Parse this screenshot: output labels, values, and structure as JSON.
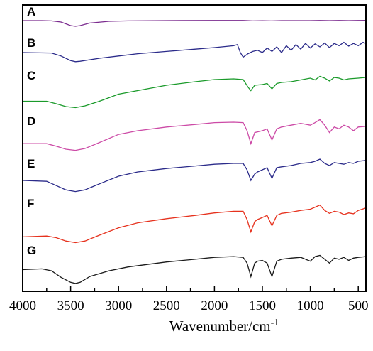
{
  "chart_data": {
    "type": "line",
    "title": "",
    "xlabel": "Wavenumber/cm",
    "xlabel_superscript": "-1",
    "ylabel": "",
    "xlim": [
      4000,
      420
    ],
    "x_reversed": true,
    "x_ticks": [
      4000,
      3500,
      3000,
      2500,
      2000,
      1500,
      1000,
      500
    ],
    "y_ticks": false,
    "grid": false,
    "legend": "none",
    "series": [
      {
        "name": "A",
        "color": "#7a2a8e",
        "points": [
          [
            4000,
            0.95
          ],
          [
            3800,
            0.95
          ],
          [
            3700,
            0.93
          ],
          [
            3600,
            0.85
          ],
          [
            3500,
            0.6
          ],
          [
            3450,
            0.55
          ],
          [
            3400,
            0.6
          ],
          [
            3300,
            0.78
          ],
          [
            3100,
            0.9
          ],
          [
            2900,
            0.93
          ],
          [
            2500,
            0.95
          ],
          [
            2000,
            0.96
          ],
          [
            1700,
            0.96
          ],
          [
            1600,
            0.93
          ],
          [
            1500,
            0.94
          ],
          [
            1400,
            0.93
          ],
          [
            1300,
            0.95
          ],
          [
            1000,
            0.95
          ],
          [
            900,
            0.96
          ],
          [
            800,
            0.95
          ],
          [
            700,
            0.96
          ],
          [
            600,
            0.95
          ],
          [
            500,
            0.96
          ],
          [
            420,
            0.97
          ]
        ]
      },
      {
        "name": "B",
        "color": "#2b2b8a",
        "points": [
          [
            4000,
            0.5
          ],
          [
            3700,
            0.48
          ],
          [
            3600,
            0.35
          ],
          [
            3500,
            0.15
          ],
          [
            3450,
            0.1
          ],
          [
            3400,
            0.12
          ],
          [
            3200,
            0.25
          ],
          [
            3000,
            0.35
          ],
          [
            2800,
            0.45
          ],
          [
            2500,
            0.55
          ],
          [
            2200,
            0.65
          ],
          [
            2000,
            0.72
          ],
          [
            1800,
            0.8
          ],
          [
            1760,
            0.85
          ],
          [
            1730,
            0.5
          ],
          [
            1700,
            0.3
          ],
          [
            1650,
            0.45
          ],
          [
            1600,
            0.55
          ],
          [
            1550,
            0.6
          ],
          [
            1500,
            0.5
          ],
          [
            1450,
            0.7
          ],
          [
            1400,
            0.55
          ],
          [
            1350,
            0.75
          ],
          [
            1300,
            0.5
          ],
          [
            1250,
            0.8
          ],
          [
            1200,
            0.6
          ],
          [
            1150,
            0.85
          ],
          [
            1100,
            0.65
          ],
          [
            1050,
            0.9
          ],
          [
            1000,
            0.7
          ],
          [
            950,
            0.88
          ],
          [
            900,
            0.75
          ],
          [
            850,
            0.92
          ],
          [
            800,
            0.72
          ],
          [
            750,
            0.9
          ],
          [
            700,
            0.8
          ],
          [
            650,
            0.95
          ],
          [
            600,
            0.78
          ],
          [
            550,
            0.9
          ],
          [
            500,
            0.8
          ],
          [
            450,
            0.95
          ],
          [
            420,
            0.9
          ]
        ]
      },
      {
        "name": "C",
        "color": "#1a9a2a",
        "points": [
          [
            4000,
            0.15
          ],
          [
            3750,
            0.15
          ],
          [
            3650,
            0.08
          ],
          [
            3550,
            0.0
          ],
          [
            3450,
            -0.03
          ],
          [
            3350,
            0.02
          ],
          [
            3200,
            0.15
          ],
          [
            3000,
            0.35
          ],
          [
            2800,
            0.45
          ],
          [
            2500,
            0.6
          ],
          [
            2200,
            0.7
          ],
          [
            2000,
            0.76
          ],
          [
            1800,
            0.78
          ],
          [
            1700,
            0.76
          ],
          [
            1650,
            0.55
          ],
          [
            1620,
            0.45
          ],
          [
            1580,
            0.6
          ],
          [
            1500,
            0.62
          ],
          [
            1450,
            0.65
          ],
          [
            1400,
            0.5
          ],
          [
            1350,
            0.65
          ],
          [
            1300,
            0.68
          ],
          [
            1200,
            0.7
          ],
          [
            1100,
            0.75
          ],
          [
            1000,
            0.8
          ],
          [
            950,
            0.75
          ],
          [
            900,
            0.85
          ],
          [
            850,
            0.8
          ],
          [
            800,
            0.72
          ],
          [
            750,
            0.82
          ],
          [
            700,
            0.8
          ],
          [
            650,
            0.75
          ],
          [
            600,
            0.78
          ],
          [
            500,
            0.8
          ],
          [
            420,
            0.82
          ]
        ]
      },
      {
        "name": "D",
        "color": "#cc4aa6",
        "points": [
          [
            4000,
            0.15
          ],
          [
            3750,
            0.15
          ],
          [
            3650,
            0.08
          ],
          [
            3550,
            0.0
          ],
          [
            3450,
            -0.03
          ],
          [
            3350,
            0.02
          ],
          [
            3200,
            0.18
          ],
          [
            3000,
            0.4
          ],
          [
            2900,
            0.45
          ],
          [
            2800,
            0.5
          ],
          [
            2500,
            0.6
          ],
          [
            2200,
            0.67
          ],
          [
            2000,
            0.72
          ],
          [
            1800,
            0.73
          ],
          [
            1700,
            0.72
          ],
          [
            1660,
            0.5
          ],
          [
            1620,
            0.15
          ],
          [
            1580,
            0.45
          ],
          [
            1500,
            0.5
          ],
          [
            1450,
            0.55
          ],
          [
            1400,
            0.25
          ],
          [
            1350,
            0.55
          ],
          [
            1300,
            0.6
          ],
          [
            1200,
            0.65
          ],
          [
            1100,
            0.7
          ],
          [
            1000,
            0.65
          ],
          [
            950,
            0.72
          ],
          [
            900,
            0.8
          ],
          [
            850,
            0.65
          ],
          [
            800,
            0.45
          ],
          [
            750,
            0.6
          ],
          [
            700,
            0.55
          ],
          [
            650,
            0.65
          ],
          [
            600,
            0.6
          ],
          [
            550,
            0.5
          ],
          [
            500,
            0.6
          ],
          [
            420,
            0.62
          ]
        ]
      },
      {
        "name": "E",
        "color": "#2b2b8a",
        "points": [
          [
            4000,
            0.3
          ],
          [
            3750,
            0.28
          ],
          [
            3650,
            0.18
          ],
          [
            3550,
            0.08
          ],
          [
            3450,
            0.04
          ],
          [
            3350,
            0.08
          ],
          [
            3200,
            0.22
          ],
          [
            3000,
            0.4
          ],
          [
            2900,
            0.45
          ],
          [
            2800,
            0.5
          ],
          [
            2500,
            0.58
          ],
          [
            2200,
            0.64
          ],
          [
            2000,
            0.68
          ],
          [
            1800,
            0.7
          ],
          [
            1700,
            0.7
          ],
          [
            1660,
            0.55
          ],
          [
            1620,
            0.3
          ],
          [
            1580,
            0.45
          ],
          [
            1550,
            0.5
          ],
          [
            1500,
            0.55
          ],
          [
            1450,
            0.6
          ],
          [
            1400,
            0.35
          ],
          [
            1350,
            0.6
          ],
          [
            1300,
            0.62
          ],
          [
            1200,
            0.65
          ],
          [
            1100,
            0.7
          ],
          [
            1000,
            0.72
          ],
          [
            950,
            0.75
          ],
          [
            900,
            0.8
          ],
          [
            850,
            0.7
          ],
          [
            800,
            0.65
          ],
          [
            750,
            0.72
          ],
          [
            700,
            0.7
          ],
          [
            650,
            0.68
          ],
          [
            600,
            0.72
          ],
          [
            550,
            0.7
          ],
          [
            500,
            0.75
          ],
          [
            420,
            0.77
          ]
        ]
      },
      {
        "name": "F",
        "color": "#e6321e",
        "points": [
          [
            4000,
            0.08
          ],
          [
            3750,
            0.1
          ],
          [
            3650,
            0.06
          ],
          [
            3550,
            -0.02
          ],
          [
            3450,
            -0.06
          ],
          [
            3350,
            -0.02
          ],
          [
            3200,
            0.12
          ],
          [
            3000,
            0.3
          ],
          [
            2900,
            0.36
          ],
          [
            2800,
            0.42
          ],
          [
            2500,
            0.52
          ],
          [
            2200,
            0.6
          ],
          [
            2000,
            0.66
          ],
          [
            1800,
            0.7
          ],
          [
            1700,
            0.7
          ],
          [
            1660,
            0.5
          ],
          [
            1620,
            0.2
          ],
          [
            1580,
            0.45
          ],
          [
            1550,
            0.5
          ],
          [
            1500,
            0.55
          ],
          [
            1450,
            0.6
          ],
          [
            1400,
            0.35
          ],
          [
            1350,
            0.6
          ],
          [
            1300,
            0.65
          ],
          [
            1200,
            0.68
          ],
          [
            1100,
            0.72
          ],
          [
            1000,
            0.75
          ],
          [
            950,
            0.8
          ],
          [
            900,
            0.85
          ],
          [
            850,
            0.72
          ],
          [
            800,
            0.65
          ],
          [
            750,
            0.7
          ],
          [
            700,
            0.68
          ],
          [
            650,
            0.62
          ],
          [
            600,
            0.66
          ],
          [
            550,
            0.64
          ],
          [
            500,
            0.72
          ],
          [
            420,
            0.78
          ]
        ]
      },
      {
        "name": "G",
        "color": "#1a1a1a",
        "points": [
          [
            4000,
            0.38
          ],
          [
            3800,
            0.4
          ],
          [
            3700,
            0.35
          ],
          [
            3600,
            0.18
          ],
          [
            3500,
            0.05
          ],
          [
            3450,
            0.02
          ],
          [
            3400,
            0.05
          ],
          [
            3300,
            0.2
          ],
          [
            3100,
            0.35
          ],
          [
            2900,
            0.45
          ],
          [
            2500,
            0.58
          ],
          [
            2200,
            0.65
          ],
          [
            2000,
            0.7
          ],
          [
            1800,
            0.72
          ],
          [
            1700,
            0.7
          ],
          [
            1660,
            0.55
          ],
          [
            1620,
            0.2
          ],
          [
            1580,
            0.55
          ],
          [
            1550,
            0.6
          ],
          [
            1500,
            0.62
          ],
          [
            1450,
            0.55
          ],
          [
            1400,
            0.2
          ],
          [
            1350,
            0.6
          ],
          [
            1300,
            0.65
          ],
          [
            1200,
            0.68
          ],
          [
            1100,
            0.7
          ],
          [
            1000,
            0.6
          ],
          [
            950,
            0.72
          ],
          [
            900,
            0.75
          ],
          [
            850,
            0.65
          ],
          [
            800,
            0.55
          ],
          [
            750,
            0.68
          ],
          [
            700,
            0.65
          ],
          [
            650,
            0.7
          ],
          [
            600,
            0.62
          ],
          [
            550,
            0.68
          ],
          [
            500,
            0.7
          ],
          [
            420,
            0.72
          ]
        ]
      }
    ]
  }
}
